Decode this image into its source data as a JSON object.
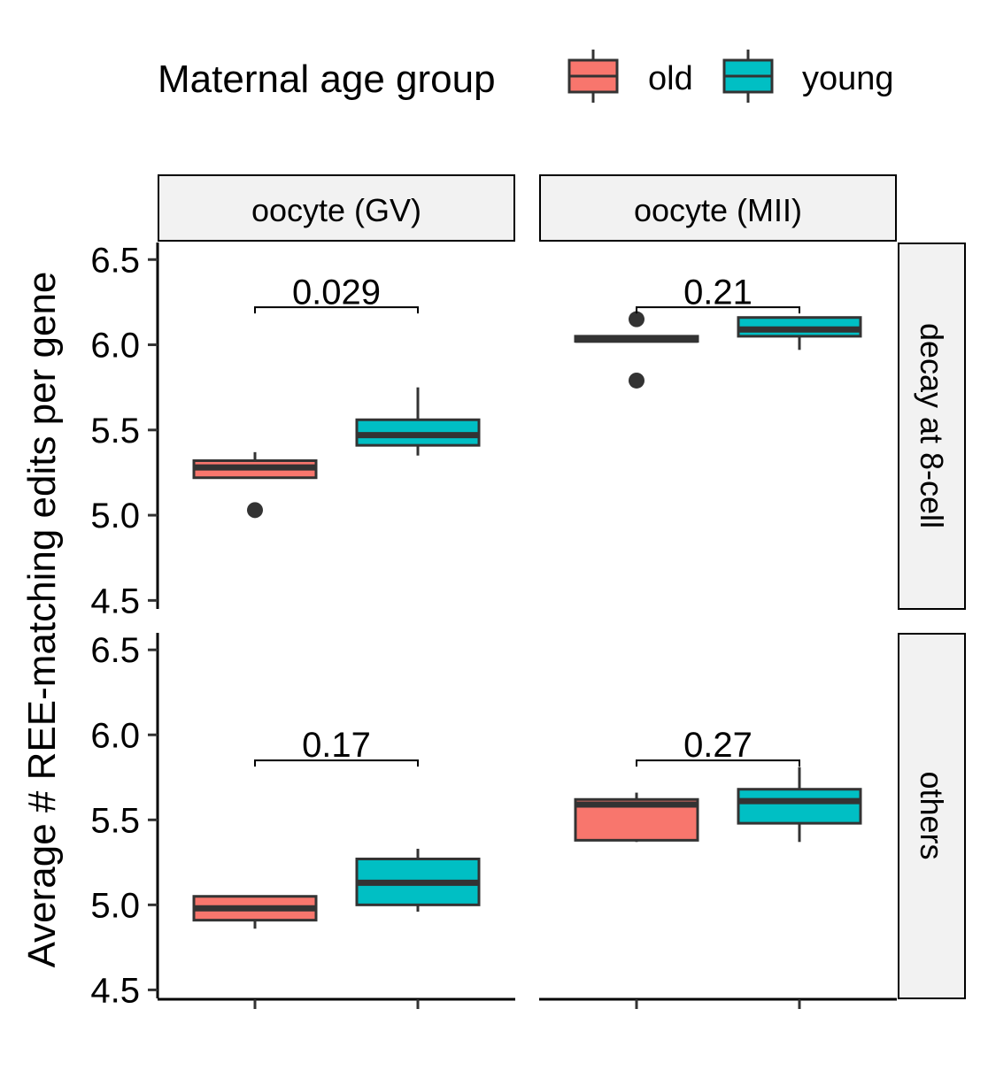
{
  "legend": {
    "title": "Maternal age group",
    "items": [
      {
        "label": "old",
        "color": "#F8766D"
      },
      {
        "label": "young",
        "color": "#00BFC4"
      }
    ]
  },
  "ylabel": "Average # REE-matching edits per gene",
  "col_facets": [
    "oocyte (GV)",
    "oocyte (MII)"
  ],
  "row_facets": [
    "decay at 8-cell",
    "others"
  ],
  "chart_data": {
    "type": "box",
    "ylim": [
      4.45,
      6.6
    ],
    "y_ticks": [
      "4.5",
      "5.0",
      "5.5",
      "6.0",
      "6.5"
    ],
    "groups": [
      "old",
      "young"
    ],
    "x_tick_labels": [
      "",
      ""
    ],
    "panels": [
      {
        "col": "oocyte (GV)",
        "row": "decay at 8-cell",
        "pvalue": "0.029",
        "bracket_y": 6.22,
        "label_y": 6.24,
        "boxes": [
          {
            "group": "old",
            "min": 5.22,
            "q1": 5.22,
            "median": 5.28,
            "q3": 5.32,
            "max": 5.37,
            "outliers": [
              5.03
            ]
          },
          {
            "group": "young",
            "min": 5.35,
            "q1": 5.41,
            "median": 5.47,
            "q3": 5.56,
            "max": 5.75,
            "outliers": []
          }
        ]
      },
      {
        "col": "oocyte (MII)",
        "row": "decay at 8-cell",
        "pvalue": "0.21",
        "bracket_y": 6.22,
        "label_y": 6.24,
        "boxes": [
          {
            "group": "old",
            "min": 6.02,
            "q1": 6.02,
            "median": 6.03,
            "q3": 6.05,
            "max": 6.05,
            "outliers": [
              6.15,
              5.79
            ]
          },
          {
            "group": "young",
            "min": 5.97,
            "q1": 6.05,
            "median": 6.09,
            "q3": 6.16,
            "max": 6.16,
            "outliers": []
          }
        ]
      },
      {
        "col": "oocyte (GV)",
        "row": "others",
        "pvalue": "0.17",
        "bracket_y": 5.85,
        "label_y": 5.87,
        "boxes": [
          {
            "group": "old",
            "min": 4.86,
            "q1": 4.91,
            "median": 4.98,
            "q3": 5.05,
            "max": 5.05,
            "outliers": []
          },
          {
            "group": "young",
            "min": 4.96,
            "q1": 5.0,
            "median": 5.13,
            "q3": 5.27,
            "max": 5.33,
            "outliers": []
          }
        ]
      },
      {
        "col": "oocyte (MII)",
        "row": "others",
        "pvalue": "0.27",
        "bracket_y": 5.85,
        "label_y": 5.87,
        "boxes": [
          {
            "group": "old",
            "min": 5.37,
            "q1": 5.38,
            "median": 5.59,
            "q3": 5.62,
            "max": 5.66,
            "outliers": []
          },
          {
            "group": "young",
            "min": 5.37,
            "q1": 5.48,
            "median": 5.61,
            "q3": 5.68,
            "max": 5.81,
            "outliers": []
          }
        ]
      }
    ]
  }
}
